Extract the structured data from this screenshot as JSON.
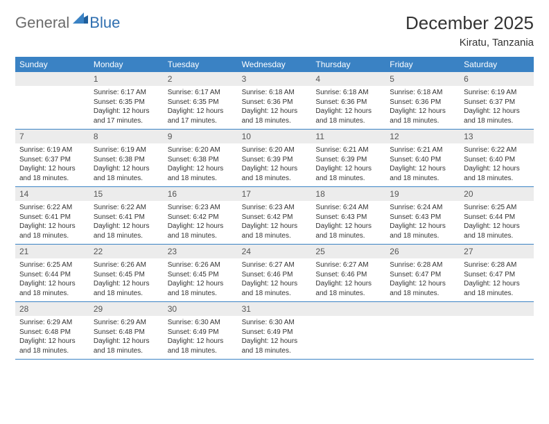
{
  "logo": {
    "general": "General",
    "blue": "Blue"
  },
  "title": "December 2025",
  "location": "Kiratu, Tanzania",
  "colors": {
    "header_bg": "#3a82c4",
    "header_text": "#ffffff",
    "daynum_bg": "#ececec",
    "border": "#3a82c4",
    "logo_gray": "#6b6b6b",
    "logo_blue": "#2f6fb0"
  },
  "weekdays": [
    "Sunday",
    "Monday",
    "Tuesday",
    "Wednesday",
    "Thursday",
    "Friday",
    "Saturday"
  ],
  "weeks": [
    [
      {
        "n": "",
        "sunrise": "",
        "sunset": "",
        "daylight": ""
      },
      {
        "n": "1",
        "sunrise": "Sunrise: 6:17 AM",
        "sunset": "Sunset: 6:35 PM",
        "daylight": "Daylight: 12 hours and 17 minutes."
      },
      {
        "n": "2",
        "sunrise": "Sunrise: 6:17 AM",
        "sunset": "Sunset: 6:35 PM",
        "daylight": "Daylight: 12 hours and 17 minutes."
      },
      {
        "n": "3",
        "sunrise": "Sunrise: 6:18 AM",
        "sunset": "Sunset: 6:36 PM",
        "daylight": "Daylight: 12 hours and 18 minutes."
      },
      {
        "n": "4",
        "sunrise": "Sunrise: 6:18 AM",
        "sunset": "Sunset: 6:36 PM",
        "daylight": "Daylight: 12 hours and 18 minutes."
      },
      {
        "n": "5",
        "sunrise": "Sunrise: 6:18 AM",
        "sunset": "Sunset: 6:36 PM",
        "daylight": "Daylight: 12 hours and 18 minutes."
      },
      {
        "n": "6",
        "sunrise": "Sunrise: 6:19 AM",
        "sunset": "Sunset: 6:37 PM",
        "daylight": "Daylight: 12 hours and 18 minutes."
      }
    ],
    [
      {
        "n": "7",
        "sunrise": "Sunrise: 6:19 AM",
        "sunset": "Sunset: 6:37 PM",
        "daylight": "Daylight: 12 hours and 18 minutes."
      },
      {
        "n": "8",
        "sunrise": "Sunrise: 6:19 AM",
        "sunset": "Sunset: 6:38 PM",
        "daylight": "Daylight: 12 hours and 18 minutes."
      },
      {
        "n": "9",
        "sunrise": "Sunrise: 6:20 AM",
        "sunset": "Sunset: 6:38 PM",
        "daylight": "Daylight: 12 hours and 18 minutes."
      },
      {
        "n": "10",
        "sunrise": "Sunrise: 6:20 AM",
        "sunset": "Sunset: 6:39 PM",
        "daylight": "Daylight: 12 hours and 18 minutes."
      },
      {
        "n": "11",
        "sunrise": "Sunrise: 6:21 AM",
        "sunset": "Sunset: 6:39 PM",
        "daylight": "Daylight: 12 hours and 18 minutes."
      },
      {
        "n": "12",
        "sunrise": "Sunrise: 6:21 AM",
        "sunset": "Sunset: 6:40 PM",
        "daylight": "Daylight: 12 hours and 18 minutes."
      },
      {
        "n": "13",
        "sunrise": "Sunrise: 6:22 AM",
        "sunset": "Sunset: 6:40 PM",
        "daylight": "Daylight: 12 hours and 18 minutes."
      }
    ],
    [
      {
        "n": "14",
        "sunrise": "Sunrise: 6:22 AM",
        "sunset": "Sunset: 6:41 PM",
        "daylight": "Daylight: 12 hours and 18 minutes."
      },
      {
        "n": "15",
        "sunrise": "Sunrise: 6:22 AM",
        "sunset": "Sunset: 6:41 PM",
        "daylight": "Daylight: 12 hours and 18 minutes."
      },
      {
        "n": "16",
        "sunrise": "Sunrise: 6:23 AM",
        "sunset": "Sunset: 6:42 PM",
        "daylight": "Daylight: 12 hours and 18 minutes."
      },
      {
        "n": "17",
        "sunrise": "Sunrise: 6:23 AM",
        "sunset": "Sunset: 6:42 PM",
        "daylight": "Daylight: 12 hours and 18 minutes."
      },
      {
        "n": "18",
        "sunrise": "Sunrise: 6:24 AM",
        "sunset": "Sunset: 6:43 PM",
        "daylight": "Daylight: 12 hours and 18 minutes."
      },
      {
        "n": "19",
        "sunrise": "Sunrise: 6:24 AM",
        "sunset": "Sunset: 6:43 PM",
        "daylight": "Daylight: 12 hours and 18 minutes."
      },
      {
        "n": "20",
        "sunrise": "Sunrise: 6:25 AM",
        "sunset": "Sunset: 6:44 PM",
        "daylight": "Daylight: 12 hours and 18 minutes."
      }
    ],
    [
      {
        "n": "21",
        "sunrise": "Sunrise: 6:25 AM",
        "sunset": "Sunset: 6:44 PM",
        "daylight": "Daylight: 12 hours and 18 minutes."
      },
      {
        "n": "22",
        "sunrise": "Sunrise: 6:26 AM",
        "sunset": "Sunset: 6:45 PM",
        "daylight": "Daylight: 12 hours and 18 minutes."
      },
      {
        "n": "23",
        "sunrise": "Sunrise: 6:26 AM",
        "sunset": "Sunset: 6:45 PM",
        "daylight": "Daylight: 12 hours and 18 minutes."
      },
      {
        "n": "24",
        "sunrise": "Sunrise: 6:27 AM",
        "sunset": "Sunset: 6:46 PM",
        "daylight": "Daylight: 12 hours and 18 minutes."
      },
      {
        "n": "25",
        "sunrise": "Sunrise: 6:27 AM",
        "sunset": "Sunset: 6:46 PM",
        "daylight": "Daylight: 12 hours and 18 minutes."
      },
      {
        "n": "26",
        "sunrise": "Sunrise: 6:28 AM",
        "sunset": "Sunset: 6:47 PM",
        "daylight": "Daylight: 12 hours and 18 minutes."
      },
      {
        "n": "27",
        "sunrise": "Sunrise: 6:28 AM",
        "sunset": "Sunset: 6:47 PM",
        "daylight": "Daylight: 12 hours and 18 minutes."
      }
    ],
    [
      {
        "n": "28",
        "sunrise": "Sunrise: 6:29 AM",
        "sunset": "Sunset: 6:48 PM",
        "daylight": "Daylight: 12 hours and 18 minutes."
      },
      {
        "n": "29",
        "sunrise": "Sunrise: 6:29 AM",
        "sunset": "Sunset: 6:48 PM",
        "daylight": "Daylight: 12 hours and 18 minutes."
      },
      {
        "n": "30",
        "sunrise": "Sunrise: 6:30 AM",
        "sunset": "Sunset: 6:49 PM",
        "daylight": "Daylight: 12 hours and 18 minutes."
      },
      {
        "n": "31",
        "sunrise": "Sunrise: 6:30 AM",
        "sunset": "Sunset: 6:49 PM",
        "daylight": "Daylight: 12 hours and 18 minutes."
      },
      {
        "n": "",
        "sunrise": "",
        "sunset": "",
        "daylight": ""
      },
      {
        "n": "",
        "sunrise": "",
        "sunset": "",
        "daylight": ""
      },
      {
        "n": "",
        "sunrise": "",
        "sunset": "",
        "daylight": ""
      }
    ]
  ]
}
